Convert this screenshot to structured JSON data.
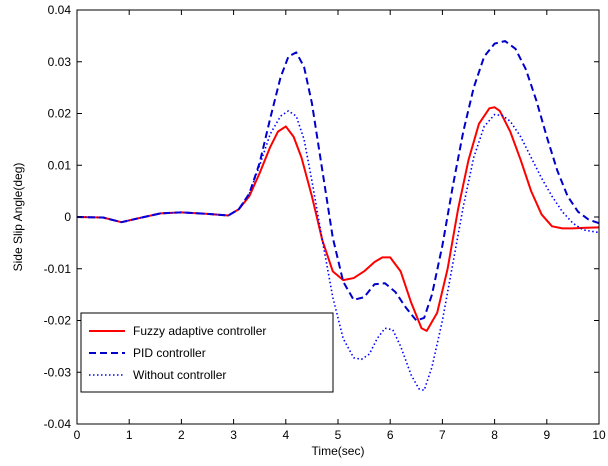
{
  "chart_data": {
    "type": "line",
    "title": "",
    "xlabel": "Time(sec)",
    "ylabel": "Side Slip Angle(deg)",
    "xlim": [
      0,
      10
    ],
    "ylim": [
      -0.04,
      0.04
    ],
    "xticks": [
      0,
      1,
      2,
      3,
      4,
      5,
      6,
      7,
      8,
      9,
      10
    ],
    "xtick_labels": [
      "0",
      "1",
      "2",
      "3",
      "4",
      "5",
      "6",
      "7",
      "8",
      "9",
      "10"
    ],
    "yticks": [
      -0.04,
      -0.03,
      -0.02,
      -0.01,
      0,
      0.01,
      0.02,
      0.03,
      0.04
    ],
    "ytick_labels": [
      "-0.04",
      "-0.03",
      "-0.02",
      "-0.01",
      "0",
      "0.01",
      "0.02",
      "0.03",
      "0.04"
    ],
    "grid": false,
    "legend_position": "bottom-left",
    "series": [
      {
        "name": "Fuzzy adaptive controller",
        "color": "#ff0000",
        "style": "solid",
        "x": [
          0,
          0.5,
          0.85,
          1.2,
          1.6,
          2.0,
          2.5,
          2.9,
          3.1,
          3.3,
          3.5,
          3.7,
          3.85,
          4.0,
          4.15,
          4.3,
          4.5,
          4.7,
          4.9,
          5.1,
          5.3,
          5.5,
          5.7,
          5.85,
          6.0,
          6.2,
          6.4,
          6.6,
          6.7,
          6.9,
          7.1,
          7.3,
          7.5,
          7.7,
          7.9,
          8.0,
          8.1,
          8.3,
          8.5,
          8.7,
          8.9,
          9.1,
          9.3,
          9.5,
          9.7,
          10.0
        ],
        "y": [
          0,
          -0.0001,
          -0.001,
          -0.0002,
          0.0007,
          0.0009,
          0.0006,
          0.0003,
          0.0015,
          0.004,
          0.0085,
          0.0135,
          0.0165,
          0.0175,
          0.0155,
          0.0115,
          0.004,
          -0.0045,
          -0.0105,
          -0.0122,
          -0.0118,
          -0.0105,
          -0.0087,
          -0.0078,
          -0.0078,
          -0.0105,
          -0.0165,
          -0.0215,
          -0.022,
          -0.0185,
          -0.01,
          0.0015,
          0.011,
          0.018,
          0.021,
          0.0212,
          0.0205,
          0.0165,
          0.011,
          0.005,
          0.0005,
          -0.0018,
          -0.0022,
          -0.0022,
          -0.0021,
          -0.002
        ]
      },
      {
        "name": "PID controller",
        "color": "#0000cc",
        "style": "dashed",
        "x": [
          0,
          0.5,
          0.85,
          1.2,
          1.6,
          2.0,
          2.5,
          2.9,
          3.1,
          3.3,
          3.5,
          3.7,
          3.9,
          4.05,
          4.2,
          4.35,
          4.5,
          4.7,
          4.9,
          5.1,
          5.3,
          5.5,
          5.7,
          5.9,
          6.1,
          6.3,
          6.5,
          6.65,
          6.8,
          7.0,
          7.2,
          7.4,
          7.6,
          7.8,
          8.0,
          8.2,
          8.4,
          8.6,
          8.8,
          9.0,
          9.2,
          9.4,
          9.6,
          9.8,
          10.0
        ],
        "y": [
          0,
          -0.0001,
          -0.001,
          -0.0002,
          0.0007,
          0.0009,
          0.0006,
          0.0003,
          0.0015,
          0.0045,
          0.0105,
          0.019,
          0.027,
          0.031,
          0.0318,
          0.029,
          0.022,
          0.009,
          -0.004,
          -0.0125,
          -0.016,
          -0.0155,
          -0.013,
          -0.0128,
          -0.0145,
          -0.0175,
          -0.02,
          -0.0195,
          -0.015,
          -0.0055,
          0.006,
          0.0165,
          0.025,
          0.031,
          0.0335,
          0.034,
          0.0325,
          0.0285,
          0.0225,
          0.0155,
          0.009,
          0.004,
          0.001,
          -0.0005,
          -0.0012
        ]
      },
      {
        "name": "Without controller",
        "color": "#0000ff",
        "style": "dotted",
        "x": [
          0,
          0.5,
          0.85,
          1.2,
          1.6,
          2.0,
          2.5,
          2.9,
          3.1,
          3.3,
          3.5,
          3.7,
          3.9,
          4.05,
          4.2,
          4.35,
          4.5,
          4.7,
          4.9,
          5.1,
          5.3,
          5.45,
          5.6,
          5.75,
          5.9,
          6.05,
          6.2,
          6.4,
          6.55,
          6.65,
          6.8,
          7.0,
          7.2,
          7.4,
          7.6,
          7.8,
          8.0,
          8.15,
          8.3,
          8.5,
          8.7,
          8.9,
          9.1,
          9.3,
          9.5,
          9.7,
          10.0
        ],
        "y": [
          0,
          -0.0001,
          -0.001,
          -0.0002,
          0.0007,
          0.0009,
          0.0006,
          0.0003,
          0.0015,
          0.0045,
          0.01,
          0.016,
          0.0195,
          0.0205,
          0.0195,
          0.015,
          0.007,
          -0.0045,
          -0.0155,
          -0.0235,
          -0.0272,
          -0.0275,
          -0.0265,
          -0.0235,
          -0.0215,
          -0.0218,
          -0.025,
          -0.0305,
          -0.0332,
          -0.0335,
          -0.029,
          -0.02,
          -0.009,
          0.002,
          0.0115,
          0.0175,
          0.0198,
          0.0196,
          0.0185,
          0.0155,
          0.0115,
          0.0075,
          0.004,
          0.001,
          -0.0012,
          -0.0025,
          -0.003
        ]
      }
    ]
  }
}
